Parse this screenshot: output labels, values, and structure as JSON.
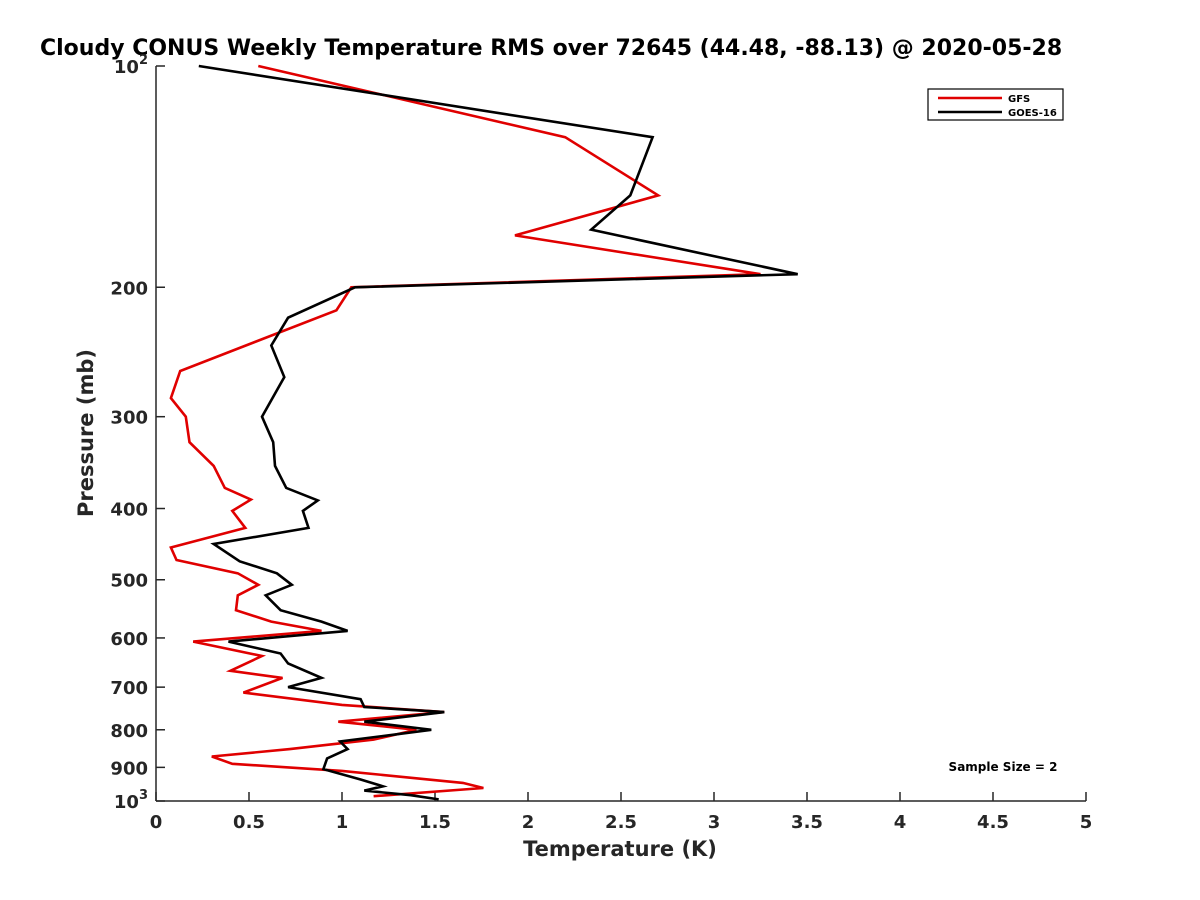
{
  "chart_data": {
    "type": "line",
    "title": "Cloudy CONUS Weekly Temperature RMS over 72645 (44.48, -88.13) @ 2020-05-28",
    "xlabel": "Temperature (K)",
    "ylabel": "Pressure (mb)",
    "xlim": [
      0,
      5
    ],
    "ylim": [
      1000,
      100
    ],
    "y_scale": "log",
    "y_reversed": true,
    "grid": false,
    "legend_position": "top-right",
    "x_ticks": [
      0,
      0.5,
      1,
      1.5,
      2,
      2.5,
      3,
      3.5,
      4,
      4.5,
      5
    ],
    "x_tick_labels": [
      "0",
      "0.5",
      "1",
      "1.5",
      "2",
      "2.5",
      "3",
      "3.5",
      "4",
      "4.5",
      "5"
    ],
    "y_ticks": [
      100,
      200,
      300,
      400,
      500,
      600,
      700,
      800,
      900,
      1000
    ],
    "y_tick_labels": [
      {
        "base": "10",
        "exp": "2"
      },
      {
        "base": "200",
        "exp": ""
      },
      {
        "base": "300",
        "exp": ""
      },
      {
        "base": "400",
        "exp": ""
      },
      {
        "base": "500",
        "exp": ""
      },
      {
        "base": "600",
        "exp": ""
      },
      {
        "base": "700",
        "exp": ""
      },
      {
        "base": "800",
        "exp": ""
      },
      {
        "base": "900",
        "exp": ""
      },
      {
        "base": "10",
        "exp": "3"
      }
    ],
    "annotation": "Sample Size = 2",
    "series": [
      {
        "name": "GFS",
        "color": "#e00000",
        "points": [
          [
            0.55,
            100
          ],
          [
            2.2,
            125
          ],
          [
            2.7,
            150
          ],
          [
            1.93,
            170
          ],
          [
            3.25,
            192
          ],
          [
            1.05,
            200
          ],
          [
            0.97,
            215
          ],
          [
            0.13,
            260
          ],
          [
            0.08,
            283
          ],
          [
            0.16,
            300
          ],
          [
            0.18,
            325
          ],
          [
            0.31,
            350
          ],
          [
            0.37,
            375
          ],
          [
            0.51,
            389
          ],
          [
            0.41,
            403
          ],
          [
            0.48,
            425
          ],
          [
            0.08,
            452
          ],
          [
            0.11,
            470
          ],
          [
            0.44,
            490
          ],
          [
            0.55,
            508
          ],
          [
            0.44,
            525
          ],
          [
            0.43,
            550
          ],
          [
            0.62,
            570
          ],
          [
            0.89,
            587
          ],
          [
            0.2,
            607
          ],
          [
            0.57,
            635
          ],
          [
            0.4,
            665
          ],
          [
            0.68,
            680
          ],
          [
            0.47,
            712
          ],
          [
            1.0,
            740
          ],
          [
            1.55,
            757
          ],
          [
            0.98,
            780
          ],
          [
            1.4,
            800
          ],
          [
            1.17,
            825
          ],
          [
            0.72,
            850
          ],
          [
            0.3,
            870
          ],
          [
            0.41,
            890
          ],
          [
            1.0,
            910
          ],
          [
            1.65,
            945
          ],
          [
            1.76,
            960
          ],
          [
            1.17,
            985
          ]
        ]
      },
      {
        "name": "GOES-16",
        "color": "#000000",
        "points": [
          [
            0.23,
            100
          ],
          [
            2.67,
            125
          ],
          [
            2.55,
            150
          ],
          [
            2.34,
            167
          ],
          [
            3.45,
            192
          ],
          [
            1.07,
            200
          ],
          [
            0.71,
            220
          ],
          [
            0.62,
            240
          ],
          [
            0.69,
            265
          ],
          [
            0.57,
            300
          ],
          [
            0.63,
            325
          ],
          [
            0.64,
            350
          ],
          [
            0.7,
            375
          ],
          [
            0.87,
            390
          ],
          [
            0.79,
            403
          ],
          [
            0.82,
            425
          ],
          [
            0.31,
            447
          ],
          [
            0.45,
            472
          ],
          [
            0.65,
            490
          ],
          [
            0.73,
            508
          ],
          [
            0.59,
            525
          ],
          [
            0.67,
            550
          ],
          [
            0.89,
            570
          ],
          [
            1.03,
            587
          ],
          [
            0.39,
            607
          ],
          [
            0.67,
            630
          ],
          [
            0.71,
            650
          ],
          [
            0.89,
            680
          ],
          [
            0.71,
            700
          ],
          [
            1.1,
            727
          ],
          [
            1.12,
            745
          ],
          [
            1.55,
            757
          ],
          [
            1.12,
            780
          ],
          [
            1.48,
            800
          ],
          [
            0.99,
            830
          ],
          [
            1.03,
            850
          ],
          [
            0.92,
            875
          ],
          [
            0.9,
            905
          ],
          [
            1.1,
            935
          ],
          [
            1.22,
            955
          ],
          [
            1.12,
            968
          ],
          [
            1.37,
            982
          ],
          [
            1.52,
            995
          ]
        ]
      }
    ]
  }
}
